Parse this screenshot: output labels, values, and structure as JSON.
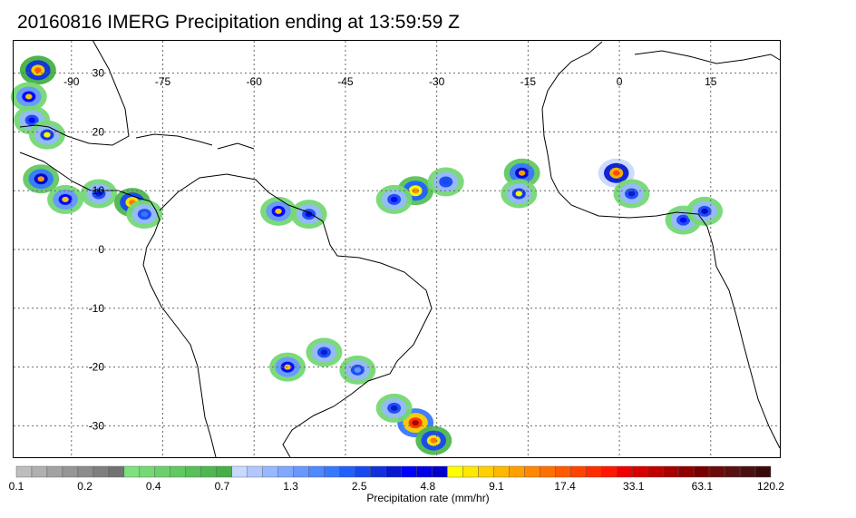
{
  "title": "20160816 IMERG Precipitation ending at 13:59:59 Z",
  "map": {
    "lon_range": [
      -99.5,
      26.5
    ],
    "lat_range": [
      -35.5,
      35.5
    ],
    "lon_labels": [
      "-90",
      "-75",
      "-60",
      "-45",
      "-30",
      "-15",
      "0",
      "15"
    ],
    "lat_labels": [
      "30",
      "20",
      "10",
      "0",
      "-10",
      "-20",
      "-30"
    ],
    "grid_style": "dotted",
    "coastline_color": "#000000"
  },
  "colorbar": {
    "label": "Precipitation rate (mm/hr)",
    "tick_labels": [
      "0.1",
      "0.2",
      "0.4",
      "0.7",
      "1.3",
      "2.5",
      "4.8",
      "9.1",
      "17.4",
      "33.1",
      "63.1",
      "120.2"
    ],
    "colors": [
      "#bdbdbd",
      "#b0b0b0",
      "#a3a3a3",
      "#969696",
      "#8c8c8c",
      "#7f7f7f",
      "#727272",
      "#7fe07f",
      "#75d875",
      "#6bd06b",
      "#62c862",
      "#58c058",
      "#4eb84e",
      "#45b045",
      "#c8d8ff",
      "#b0c8ff",
      "#98b8ff",
      "#80a8ff",
      "#6898ff",
      "#5088ff",
      "#3878ff",
      "#2060ff",
      "#1848f0",
      "#1030e0",
      "#0818d0",
      "#0000ff",
      "#0000e6",
      "#0000cc",
      "#ffff00",
      "#ffe800",
      "#ffd000",
      "#ffb800",
      "#ffa000",
      "#ff8800",
      "#ff7000",
      "#ff5a00",
      "#ff4400",
      "#ff2e00",
      "#ff1800",
      "#f00000",
      "#d80000",
      "#c00000",
      "#a80000",
      "#900000",
      "#7a0000",
      "#6a0a0a",
      "#5a1010",
      "#4a1010",
      "#3a0a0a"
    ]
  },
  "precip_cells": [
    {
      "lon": -95.5,
      "lat": 30.5,
      "level": 35
    },
    {
      "lon": -97.0,
      "lat": 26.0,
      "level": 30
    },
    {
      "lon": -96.5,
      "lat": 22.0,
      "level": 25
    },
    {
      "lon": -94.0,
      "lat": 19.5,
      "level": 28
    },
    {
      "lon": -95.0,
      "lat": 12.0,
      "level": 32
    },
    {
      "lon": -91.0,
      "lat": 8.5,
      "level": 30
    },
    {
      "lon": -85.5,
      "lat": 9.5,
      "level": 24
    },
    {
      "lon": -80.0,
      "lat": 8.0,
      "level": 34
    },
    {
      "lon": -78.0,
      "lat": 6.0,
      "level": 20
    },
    {
      "lon": -56.0,
      "lat": 6.5,
      "level": 30
    },
    {
      "lon": -51.0,
      "lat": 6.0,
      "level": 26
    },
    {
      "lon": -33.5,
      "lat": 10.0,
      "level": 33
    },
    {
      "lon": -37.0,
      "lat": 8.5,
      "level": 25
    },
    {
      "lon": -28.5,
      "lat": 11.5,
      "level": 22
    },
    {
      "lon": -16.0,
      "lat": 13.0,
      "level": 32
    },
    {
      "lon": -16.5,
      "lat": 9.5,
      "level": 28
    },
    {
      "lon": -0.5,
      "lat": 13.0,
      "level": 36
    },
    {
      "lon": 2.0,
      "lat": 9.5,
      "level": 24
    },
    {
      "lon": 10.5,
      "lat": 5.0,
      "level": 25
    },
    {
      "lon": 14.0,
      "lat": 6.5,
      "level": 27
    },
    {
      "lon": -54.5,
      "lat": -20.0,
      "level": 30
    },
    {
      "lon": -48.5,
      "lat": -17.5,
      "level": 24
    },
    {
      "lon": -43.0,
      "lat": -20.5,
      "level": 18
    },
    {
      "lon": -33.5,
      "lat": -29.5,
      "level": 42
    },
    {
      "lon": -30.5,
      "lat": -32.5,
      "level": 34
    },
    {
      "lon": -37.0,
      "lat": -27.0,
      "level": 24
    }
  ]
}
